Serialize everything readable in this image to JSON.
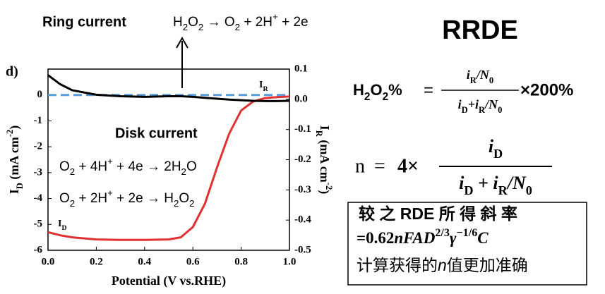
{
  "chart_data": {
    "type": "line",
    "panel_label": "d)",
    "x_label": "Potential (V vs.RHE)",
    "y_label": [
      "I",
      "D",
      " (mA cm",
      "-2",
      ")"
    ],
    "y2_label": [
      "I",
      "R",
      " (mA cm",
      "-2",
      ")"
    ],
    "x": [
      0,
      0.05,
      0.1,
      0.2,
      0.3,
      0.4,
      0.5,
      0.55,
      0.6,
      0.65,
      0.7,
      0.75,
      0.8,
      0.85,
      0.9,
      0.95,
      1.0
    ],
    "xlim": [
      0,
      1
    ],
    "xticks": [
      {
        "value": 0,
        "label": "0.0"
      },
      0.2,
      0.4,
      0.6,
      0.8,
      {
        "value": 1,
        "label": "1.0"
      }
    ],
    "ylim": [
      -6,
      1
    ],
    "yticks": [
      -6,
      -5,
      -4,
      -3,
      -2,
      -1,
      0
    ],
    "y2lim": [
      -0.5,
      0.1
    ],
    "y2ticks": [
      -0.5,
      -0.4,
      -0.3,
      -0.2,
      -0.1,
      {
        "value": 0,
        "label": "0.0"
      },
      0.1
    ],
    "series": [
      {
        "label": [
          "I",
          "D"
        ],
        "color": "#e03030",
        "values": [
          -5.3,
          -5.42,
          -5.5,
          -5.58,
          -5.6,
          -5.6,
          -5.58,
          -5.5,
          -5.1,
          -4.2,
          -2.8,
          -1.5,
          -0.6,
          -0.25,
          -0.12,
          -0.08,
          -0.06
        ]
      },
      {
        "label": [
          "I",
          "R"
        ],
        "color": "#000000",
        "axis": "y2",
        "values": [
          0.08,
          0.05,
          0.03,
          0.015,
          0.01,
          0.008,
          0.01,
          0.01,
          0.008,
          0.005,
          0.002,
          -0.001,
          -0.003,
          -0.005,
          -0.006,
          -0.006,
          -0.005
        ]
      }
    ],
    "reference_line": {
      "value": 0,
      "color": "#5b9bd5"
    },
    "annotations": {
      "ring_title": "Ring current",
      "ring_reaction": [
        "H",
        "2",
        "O",
        "2",
        " → O",
        "2",
        " + 2H",
        "+",
        " + 2e"
      ],
      "disk_title": "Disk current",
      "disk_reaction_1": [
        "O",
        "2",
        " + 4H",
        "+",
        " + 4e → 2H",
        "2",
        "O"
      ],
      "disk_reaction_2": [
        "O",
        "2",
        " + 2H",
        "+",
        " + 2e → H",
        "2",
        "O",
        "2"
      ]
    }
  },
  "side": {
    "title": "RRDE",
    "formula_1": {
      "lhs": [
        "H",
        "2",
        "O",
        "2",
        "%"
      ],
      "eq": "=",
      "num": [
        "i",
        "R",
        "/N",
        "0"
      ],
      "den": [
        "i",
        "D",
        "+i",
        "R",
        "/N",
        "0"
      ],
      "tail": "×200%"
    },
    "formula_2": {
      "lhs": "n",
      "eq": "=",
      "factor": "4×",
      "num": [
        "i",
        "D"
      ],
      "den": [
        "i",
        "D",
        " + i",
        "R",
        "/N",
        "0"
      ]
    },
    "note": {
      "line_1": "较 之 RDE 所 得 斜 率",
      "line_2": [
        "=0.62",
        "nFAD",
        "2/3",
        "γ",
        "−1/6",
        "C"
      ],
      "line_3": [
        "计算获得的",
        "n",
        "值更加准确"
      ]
    }
  }
}
